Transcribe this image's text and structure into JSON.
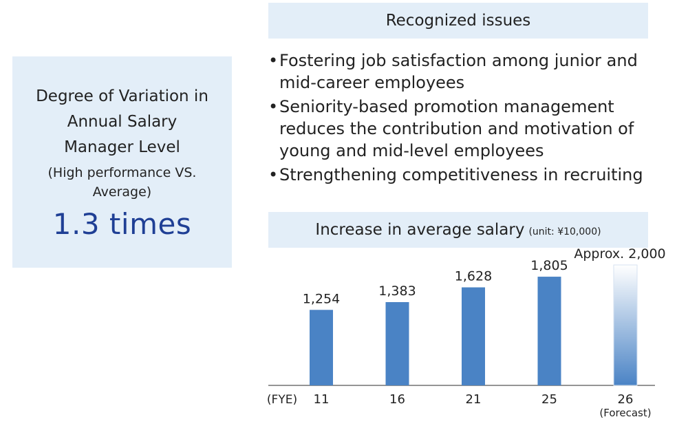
{
  "left_panel": {
    "line1": "Degree of Variation in",
    "line2": "Annual Salary",
    "line3": "Manager Level",
    "sub1": "(High performance VS.",
    "sub2": "Average)",
    "value": "1.3 times"
  },
  "issues": {
    "title": "Recognized issues",
    "bullet": "•",
    "items": [
      "Fostering job satisfaction among junior and mid-career employees",
      "Seniority-based promotion management reduces the contribution and motivation of young and mid-level employees",
      "Strengthening competitiveness in recruiting"
    ]
  },
  "salary_header": {
    "title": "Increase in average salary",
    "unit": "(unit: ¥10,000)"
  },
  "colors": {
    "bar": "#4a83c5",
    "forecast_top": "#ffffff",
    "panel_bg": "#e3eef8",
    "highlight_text": "#1f3f95"
  },
  "chart_data": {
    "type": "bar",
    "title": "Increase in average salary",
    "unit": "(unit: ¥10,000)",
    "x_axis_prefix": "(FYE)",
    "categories": [
      "11",
      "16",
      "21",
      "25",
      "26"
    ],
    "category_notes": [
      "",
      "",
      "",
      "",
      "(Forecast)"
    ],
    "values": [
      1254,
      1383,
      1628,
      1805,
      2000
    ],
    "value_labels": [
      "1,254",
      "1,383",
      "1,628",
      "1,805",
      "Approx. 2,000"
    ],
    "forecast": [
      false,
      false,
      false,
      false,
      true
    ],
    "ylim": [
      0,
      2000
    ],
    "grid": false,
    "legend": "none"
  }
}
